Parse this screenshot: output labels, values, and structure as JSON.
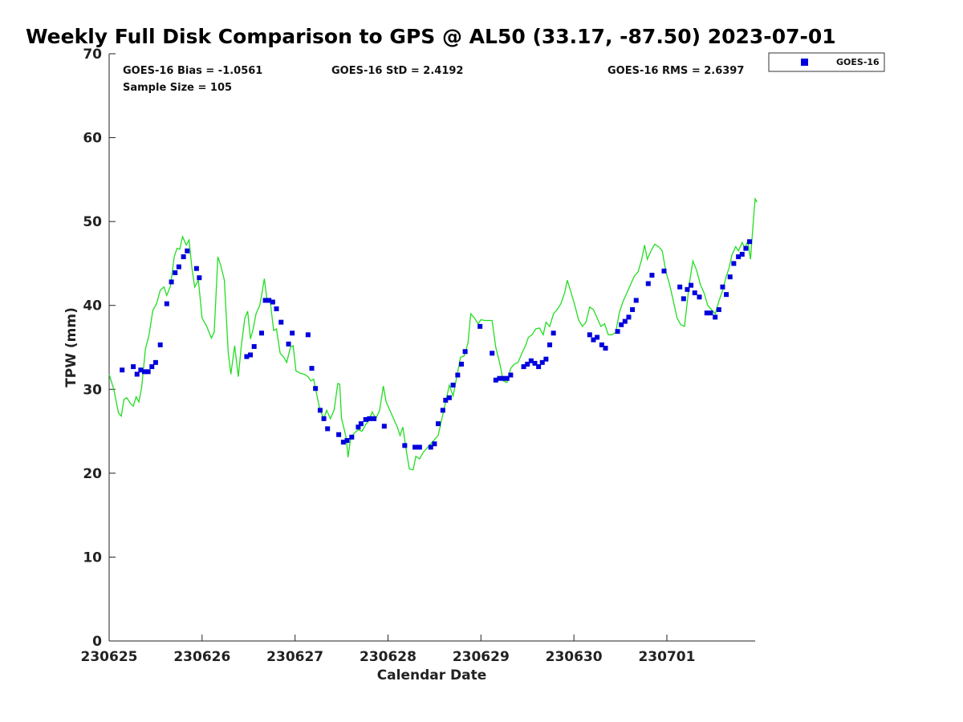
{
  "chart_data": {
    "type": "scatter",
    "title": "Weekly Full Disk Comparison to GPS @ AL50 (33.17, -87.50) 2023-07-01",
    "xlabel": "Calendar Date",
    "ylabel": "TPW (mm)",
    "x_unit": "calendar day (230625 = day 0)",
    "xlim": [
      0,
      6.95
    ],
    "ylim": [
      0,
      70
    ],
    "x_ticks": [
      {
        "value": 0,
        "label": "230625"
      },
      {
        "value": 1,
        "label": "230626"
      },
      {
        "value": 2,
        "label": "230627"
      },
      {
        "value": 3,
        "label": "230628"
      },
      {
        "value": 4,
        "label": "230629"
      },
      {
        "value": 5,
        "label": "230630"
      },
      {
        "value": 6,
        "label": "230701"
      }
    ],
    "y_ticks": [
      0,
      10,
      20,
      30,
      40,
      50,
      60,
      70
    ],
    "grid": false,
    "legend": {
      "placement": "outside-top-right",
      "entries": [
        "GOES-16"
      ]
    },
    "stats": {
      "bias": "GOES-16 Bias = -1.0561",
      "std": "GOES-16 StD = 2.4192",
      "rms": "GOES-16 RMS = 2.6397",
      "sample": "Sample Size = 105"
    },
    "colors": {
      "goes": "#0000dd",
      "gps": "#22dd22"
    },
    "series": [
      {
        "name": "GOES-16",
        "kind": "scatter",
        "color": "#0000dd",
        "points": [
          [
            0.14,
            32.3
          ],
          [
            0.26,
            32.7
          ],
          [
            0.3,
            31.8
          ],
          [
            0.34,
            32.3
          ],
          [
            0.38,
            32.1
          ],
          [
            0.42,
            32.1
          ],
          [
            0.46,
            32.7
          ],
          [
            0.5,
            33.2
          ],
          [
            0.55,
            35.3
          ],
          [
            0.62,
            40.2
          ],
          [
            0.67,
            42.8
          ],
          [
            0.71,
            43.9
          ],
          [
            0.75,
            44.6
          ],
          [
            0.8,
            45.8
          ],
          [
            0.84,
            46.5
          ],
          [
            0.94,
            44.4
          ],
          [
            0.97,
            43.3
          ],
          [
            1.48,
            33.9
          ],
          [
            1.52,
            34.1
          ],
          [
            1.56,
            35.1
          ],
          [
            1.64,
            36.7
          ],
          [
            1.68,
            40.6
          ],
          [
            1.72,
            40.6
          ],
          [
            1.76,
            40.4
          ],
          [
            1.8,
            39.6
          ],
          [
            1.85,
            38
          ],
          [
            1.93,
            35.4
          ],
          [
            1.97,
            36.7
          ],
          [
            2.14,
            36.5
          ],
          [
            2.18,
            32.5
          ],
          [
            2.22,
            30.1
          ],
          [
            2.27,
            27.5
          ],
          [
            2.31,
            26.5
          ],
          [
            2.35,
            25.3
          ],
          [
            2.47,
            24.6
          ],
          [
            2.52,
            23.7
          ],
          [
            2.56,
            23.9
          ],
          [
            2.61,
            24.3
          ],
          [
            2.68,
            25.5
          ],
          [
            2.71,
            25.9
          ],
          [
            2.76,
            26.4
          ],
          [
            2.8,
            26.5
          ],
          [
            2.85,
            26.5
          ],
          [
            2.96,
            25.6
          ],
          [
            3.18,
            23.3
          ],
          [
            3.29,
            23.1
          ],
          [
            3.34,
            23.1
          ],
          [
            3.46,
            23.1
          ],
          [
            3.5,
            23.5
          ],
          [
            3.54,
            25.9
          ],
          [
            3.59,
            27.5
          ],
          [
            3.62,
            28.7
          ],
          [
            3.66,
            29
          ],
          [
            3.7,
            30.5
          ],
          [
            3.75,
            31.7
          ],
          [
            3.79,
            33
          ],
          [
            3.83,
            34.5
          ],
          [
            3.99,
            37.5
          ],
          [
            4.12,
            34.3
          ],
          [
            4.16,
            31.1
          ],
          [
            4.2,
            31.3
          ],
          [
            4.24,
            31.3
          ],
          [
            4.28,
            31.3
          ],
          [
            4.32,
            31.7
          ],
          [
            4.46,
            32.7
          ],
          [
            4.5,
            33
          ],
          [
            4.54,
            33.4
          ],
          [
            4.58,
            33.1
          ],
          [
            4.62,
            32.7
          ],
          [
            4.66,
            33.2
          ],
          [
            4.7,
            33.6
          ],
          [
            4.74,
            35.3
          ],
          [
            4.78,
            36.7
          ],
          [
            5.17,
            36.5
          ],
          [
            5.21,
            35.9
          ],
          [
            5.25,
            36.2
          ],
          [
            5.3,
            35.3
          ],
          [
            5.34,
            34.9
          ],
          [
            5.47,
            36.9
          ],
          [
            5.51,
            37.7
          ],
          [
            5.55,
            38.1
          ],
          [
            5.59,
            38.6
          ],
          [
            5.63,
            39.5
          ],
          [
            5.67,
            40.6
          ],
          [
            5.8,
            42.6
          ],
          [
            5.84,
            43.6
          ],
          [
            5.97,
            44.1
          ],
          [
            6.14,
            42.2
          ],
          [
            6.18,
            40.8
          ],
          [
            6.22,
            41.9
          ],
          [
            6.26,
            42.4
          ],
          [
            6.3,
            41.5
          ],
          [
            6.35,
            41
          ],
          [
            6.43,
            39.1
          ],
          [
            6.47,
            39.1
          ],
          [
            6.52,
            38.6
          ],
          [
            6.56,
            39.5
          ],
          [
            6.6,
            42.2
          ],
          [
            6.64,
            41.3
          ],
          [
            6.68,
            43.4
          ],
          [
            6.72,
            45
          ],
          [
            6.77,
            45.8
          ],
          [
            6.81,
            46.1
          ],
          [
            6.85,
            46.8
          ],
          [
            6.89,
            47.6
          ]
        ]
      },
      {
        "name": "",
        "kind": "line",
        "color": "#22dd22",
        "points": [
          [
            0,
            31.8
          ],
          [
            0.05,
            30
          ],
          [
            0.1,
            27.2
          ],
          [
            0.13,
            26.8
          ],
          [
            0.16,
            28.8
          ],
          [
            0.19,
            29
          ],
          [
            0.23,
            28.3
          ],
          [
            0.26,
            28
          ],
          [
            0.29,
            29.1
          ],
          [
            0.32,
            28.5
          ],
          [
            0.35,
            30.2
          ],
          [
            0.39,
            34.8
          ],
          [
            0.43,
            36.5
          ],
          [
            0.47,
            39.4
          ],
          [
            0.51,
            40.2
          ],
          [
            0.55,
            41.8
          ],
          [
            0.59,
            42.2
          ],
          [
            0.62,
            41.2
          ],
          [
            0.66,
            42.3
          ],
          [
            0.7,
            45.8
          ],
          [
            0.73,
            46.8
          ],
          [
            0.76,
            46.7
          ],
          [
            0.79,
            48.2
          ],
          [
            0.83,
            47.2
          ],
          [
            0.86,
            47.8
          ],
          [
            0.89,
            44.5
          ],
          [
            0.92,
            42.2
          ],
          [
            0.96,
            43
          ],
          [
            1.0,
            38.5
          ],
          [
            1.05,
            37.5
          ],
          [
            1.1,
            36.1
          ],
          [
            1.13,
            36.8
          ],
          [
            1.17,
            45.8
          ],
          [
            1.2,
            44.8
          ],
          [
            1.24,
            43
          ],
          [
            1.28,
            34.5
          ],
          [
            1.31,
            31.8
          ],
          [
            1.35,
            35.2
          ],
          [
            1.39,
            31.5
          ],
          [
            1.42,
            35
          ],
          [
            1.46,
            38.5
          ],
          [
            1.49,
            39.3
          ],
          [
            1.52,
            36
          ],
          [
            1.55,
            37.2
          ],
          [
            1.58,
            39
          ],
          [
            1.62,
            40
          ],
          [
            1.64,
            41.2
          ],
          [
            1.67,
            43.2
          ],
          [
            1.7,
            40.5
          ],
          [
            1.73,
            40.8
          ],
          [
            1.77,
            37
          ],
          [
            1.8,
            37.2
          ],
          [
            1.84,
            34.3
          ],
          [
            1.88,
            33.8
          ],
          [
            1.91,
            33.2
          ],
          [
            1.95,
            35
          ],
          [
            1.98,
            35.2
          ],
          [
            2.01,
            32.2
          ],
          [
            2.06,
            31.9
          ],
          [
            2.1,
            31.8
          ],
          [
            2.14,
            31.5
          ],
          [
            2.17,
            31
          ],
          [
            2.2,
            31.2
          ],
          [
            2.24,
            29
          ],
          [
            2.27,
            27.5
          ],
          [
            2.31,
            26.5
          ],
          [
            2.34,
            27.5
          ],
          [
            2.38,
            26.5
          ],
          [
            2.42,
            27.5
          ],
          [
            2.46,
            30.7
          ],
          [
            2.48,
            30.6
          ],
          [
            2.5,
            26.5
          ],
          [
            2.53,
            25.2
          ],
          [
            2.55,
            24.2
          ],
          [
            2.57,
            21.9
          ],
          [
            2.6,
            24.3
          ],
          [
            2.64,
            24.8
          ],
          [
            2.68,
            25.2
          ],
          [
            2.72,
            25
          ],
          [
            2.76,
            25.8
          ],
          [
            2.79,
            26.2
          ],
          [
            2.83,
            27.3
          ],
          [
            2.87,
            26.5
          ],
          [
            2.91,
            27.5
          ],
          [
            2.95,
            30.4
          ],
          [
            2.98,
            28.5
          ],
          [
            3.02,
            27.5
          ],
          [
            3.06,
            26.5
          ],
          [
            3.1,
            25.5
          ],
          [
            3.13,
            24.5
          ],
          [
            3.16,
            25.5
          ],
          [
            3.2,
            22.5
          ],
          [
            3.23,
            20.5
          ],
          [
            3.27,
            20.4
          ],
          [
            3.3,
            22
          ],
          [
            3.34,
            21.7
          ],
          [
            3.38,
            22.5
          ],
          [
            3.42,
            23
          ],
          [
            3.46,
            23.5
          ],
          [
            3.5,
            24
          ],
          [
            3.54,
            24.5
          ],
          [
            3.58,
            26.5
          ],
          [
            3.62,
            28.5
          ],
          [
            3.66,
            30.5
          ],
          [
            3.7,
            29.2
          ],
          [
            3.74,
            31.5
          ],
          [
            3.78,
            33.8
          ],
          [
            3.82,
            34
          ],
          [
            3.86,
            35.5
          ],
          [
            3.89,
            39
          ],
          [
            3.93,
            38.5
          ],
          [
            3.97,
            37.8
          ],
          [
            4.0,
            38.3
          ],
          [
            4.04,
            38.2
          ],
          [
            4.08,
            38.2
          ],
          [
            4.12,
            38.2
          ],
          [
            4.16,
            35
          ],
          [
            4.2,
            33.2
          ],
          [
            4.24,
            31
          ],
          [
            4.28,
            30.8
          ],
          [
            4.32,
            32.5
          ],
          [
            4.36,
            33
          ],
          [
            4.4,
            33.2
          ],
          [
            4.44,
            34.3
          ],
          [
            4.48,
            35.2
          ],
          [
            4.51,
            36.2
          ],
          [
            4.55,
            36.5
          ],
          [
            4.59,
            37.2
          ],
          [
            4.63,
            37.3
          ],
          [
            4.67,
            36.5
          ],
          [
            4.7,
            38
          ],
          [
            4.74,
            37.5
          ],
          [
            4.78,
            39
          ],
          [
            4.82,
            39.5
          ],
          [
            4.86,
            40.2
          ],
          [
            4.9,
            41.5
          ],
          [
            4.93,
            43
          ],
          [
            4.97,
            41.5
          ],
          [
            5.01,
            40
          ],
          [
            5.05,
            38.3
          ],
          [
            5.09,
            37.5
          ],
          [
            5.13,
            38
          ],
          [
            5.17,
            39.8
          ],
          [
            5.21,
            39.5
          ],
          [
            5.25,
            38.5
          ],
          [
            5.29,
            37.5
          ],
          [
            5.33,
            37.8
          ],
          [
            5.37,
            36.5
          ],
          [
            5.41,
            36.5
          ],
          [
            5.45,
            36.8
          ],
          [
            5.49,
            39.2
          ],
          [
            5.53,
            40.5
          ],
          [
            5.57,
            41.5
          ],
          [
            5.61,
            42.5
          ],
          [
            5.65,
            43.5
          ],
          [
            5.69,
            44
          ],
          [
            5.73,
            45.5
          ],
          [
            5.76,
            47.2
          ],
          [
            5.79,
            45.5
          ],
          [
            5.83,
            46.5
          ],
          [
            5.87,
            47.3
          ],
          [
            5.91,
            47
          ],
          [
            5.95,
            46.5
          ],
          [
            5.99,
            44
          ],
          [
            6.03,
            42.5
          ],
          [
            6.07,
            40.5
          ],
          [
            6.11,
            38.5
          ],
          [
            6.15,
            37.7
          ],
          [
            6.19,
            37.5
          ],
          [
            6.24,
            42.5
          ],
          [
            6.28,
            45.3
          ],
          [
            6.32,
            44.2
          ],
          [
            6.36,
            42.5
          ],
          [
            6.4,
            41.5
          ],
          [
            6.44,
            40
          ],
          [
            6.48,
            39.5
          ],
          [
            6.52,
            39
          ],
          [
            6.56,
            40.5
          ],
          [
            6.6,
            41.8
          ],
          [
            6.64,
            43.5
          ],
          [
            6.67,
            44.5
          ],
          [
            6.7,
            46
          ],
          [
            6.74,
            47
          ],
          [
            6.77,
            46.5
          ],
          [
            6.81,
            47.5
          ],
          [
            6.84,
            46.8
          ],
          [
            6.87,
            47.7
          ],
          [
            6.9,
            45.5
          ],
          [
            6.93,
            50
          ],
          [
            6.95,
            52.7
          ],
          [
            6.97,
            52.3
          ]
        ]
      }
    ]
  }
}
